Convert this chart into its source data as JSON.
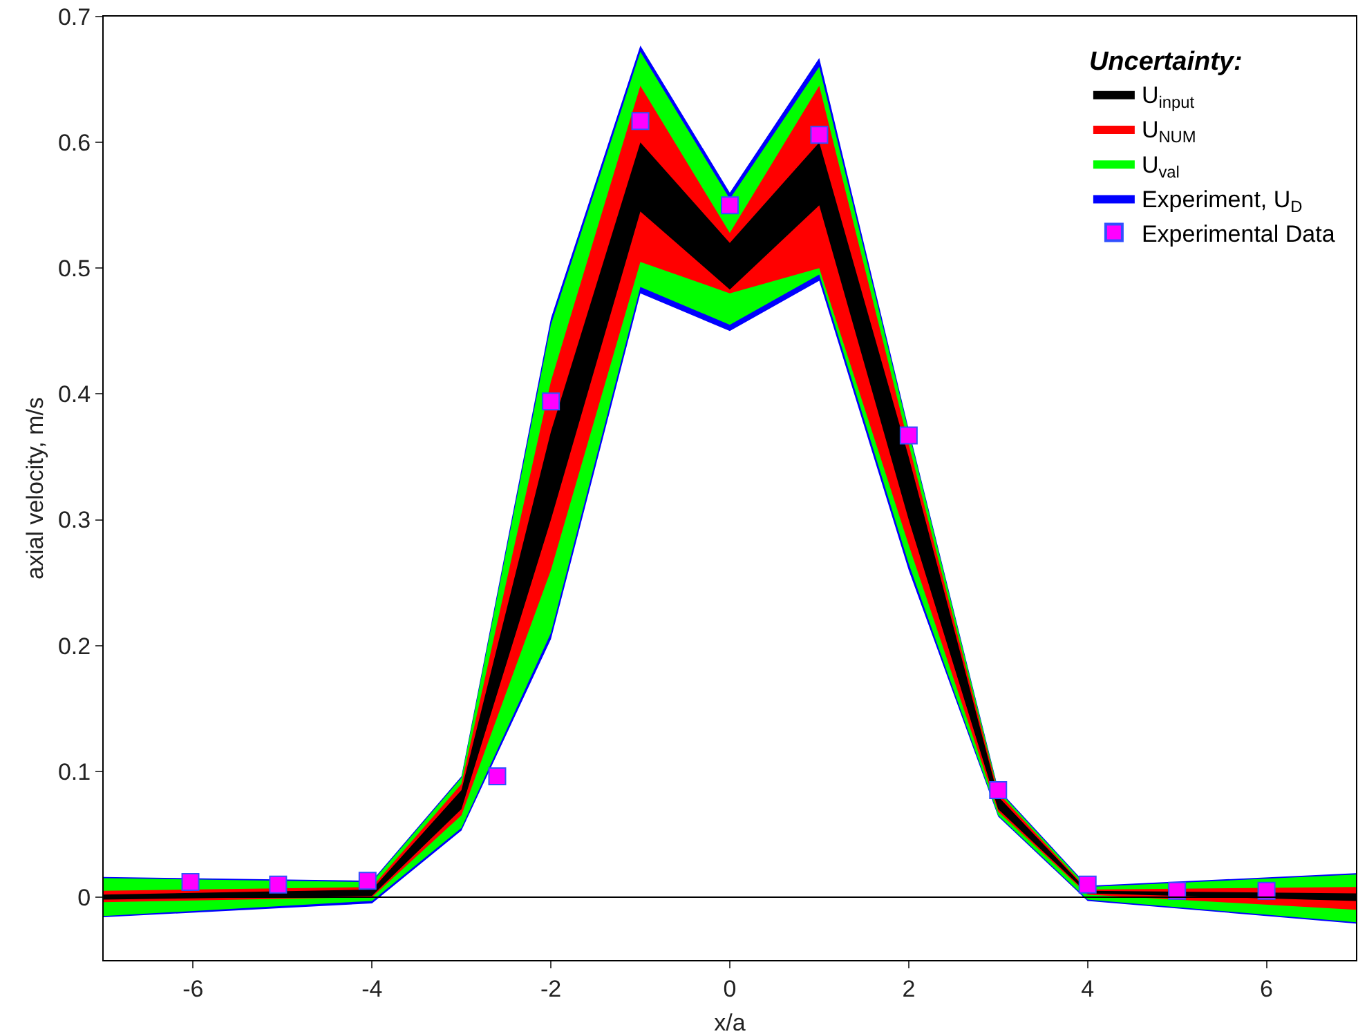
{
  "chart_data": {
    "type": "area",
    "xlabel": "x/a",
    "ylabel": "axial velocity, m/s",
    "legend_title": "Uncertainty:",
    "legend": "top right",
    "grid": false,
    "x": [
      -7,
      -4,
      -3,
      -2,
      -1,
      0,
      1,
      2,
      3,
      4,
      7
    ],
    "xlim": [
      -7,
      7
    ],
    "xticks": [
      -6,
      -4,
      -2,
      0,
      2,
      4,
      6
    ],
    "ylim": [
      -0.05,
      0.7
    ],
    "yticks": [
      0,
      0.1,
      0.2,
      0.3,
      0.4,
      0.5,
      0.6,
      0.7
    ],
    "ref_lines": [
      {
        "axis": "y",
        "value": 0,
        "color": "#000000"
      }
    ],
    "series": [
      {
        "name": "U$_{input}$",
        "color": "#000000",
        "values": [
          null,
          null,
          null,
          null,
          null,
          null,
          null,
          null,
          null,
          null,
          null
        ],
        "lower": [
          -0.002,
          0.001,
          0.07,
          0.3,
          0.545,
          0.483,
          0.55,
          0.3,
          0.07,
          0.003,
          -0.003
        ],
        "upper": [
          0.002,
          0.006,
          0.085,
          0.37,
          0.6,
          0.52,
          0.6,
          0.35,
          0.08,
          0.005,
          0.003
        ]
      },
      {
        "name": "U$_{NUM}$",
        "color": "#ff0000",
        "values": [
          null,
          null,
          null,
          null,
          null,
          null,
          null,
          null,
          null,
          null,
          null
        ],
        "lower": [
          -0.004,
          0.0,
          0.065,
          0.26,
          0.505,
          0.48,
          0.5,
          0.28,
          0.068,
          0.002,
          -0.01
        ],
        "upper": [
          0.005,
          0.008,
          0.09,
          0.41,
          0.645,
          0.528,
          0.645,
          0.36,
          0.083,
          0.006,
          0.008
        ]
      },
      {
        "name": "U$_{val}$",
        "color": "#00ff00",
        "values": [
          null,
          null,
          null,
          null,
          null,
          null,
          null,
          null,
          null,
          null,
          null
        ],
        "lower": [
          -0.015,
          -0.003,
          0.055,
          0.21,
          0.485,
          0.455,
          0.495,
          0.265,
          0.065,
          -0.002,
          -0.02
        ],
        "upper": [
          0.015,
          0.012,
          0.095,
          0.455,
          0.672,
          0.555,
          0.66,
          0.37,
          0.085,
          0.008,
          0.018
        ]
      },
      {
        "name": "Experiment, U$_{D}$",
        "color": "#0000ff",
        "values": [
          null,
          null,
          null,
          null,
          null,
          null,
          null,
          null,
          null,
          null,
          null
        ],
        "lower": [
          -0.016,
          -0.005,
          0.053,
          0.205,
          0.48,
          0.45,
          0.49,
          0.26,
          0.064,
          -0.003,
          -0.021
        ],
        "upper": [
          0.016,
          0.013,
          0.096,
          0.46,
          0.677,
          0.56,
          0.667,
          0.372,
          0.086,
          0.009,
          0.019
        ]
      },
      {
        "name": "Experimental Data",
        "type": "scatter",
        "marker": "square",
        "color": "#ff00ff",
        "x": [
          -6.03,
          -5.05,
          -4.05,
          -2.6,
          -2,
          -1,
          0,
          1,
          2,
          3,
          4,
          5,
          6
        ],
        "values": [
          0.012,
          0.01,
          0.013,
          0.096,
          0.394,
          0.617,
          0.55,
          0.606,
          0.367,
          0.085,
          0.01,
          0.005,
          0.005
        ]
      }
    ]
  }
}
